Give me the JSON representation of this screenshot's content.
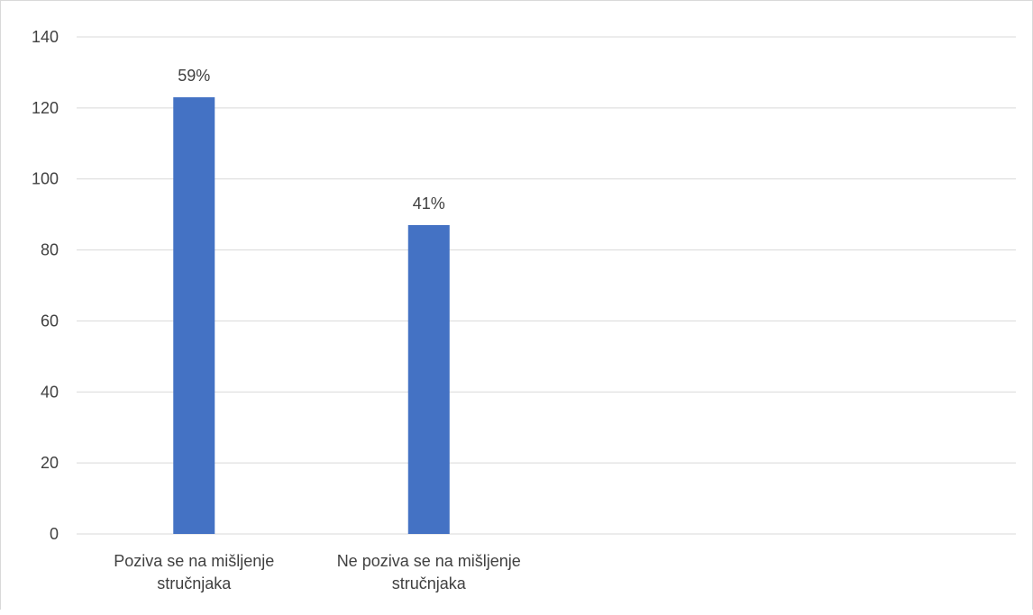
{
  "chart_data": {
    "type": "bar",
    "categories": [
      [
        "Poziva se na mišljenje",
        "stručnjaka"
      ],
      [
        "Ne poziva se na mišljenje",
        "stručnjaka"
      ],
      [
        "",
        ""
      ],
      [
        "",
        ""
      ]
    ],
    "values": [
      123,
      87,
      null,
      null
    ],
    "data_labels": [
      "59%",
      "41%",
      "",
      ""
    ],
    "ylim": [
      0,
      140
    ],
    "yticks": [
      0,
      20,
      40,
      60,
      80,
      100,
      120,
      140
    ],
    "grid": true,
    "colors": {
      "bar": "#4472C4",
      "grid": "#d9d9d9",
      "text": "#404040"
    }
  }
}
